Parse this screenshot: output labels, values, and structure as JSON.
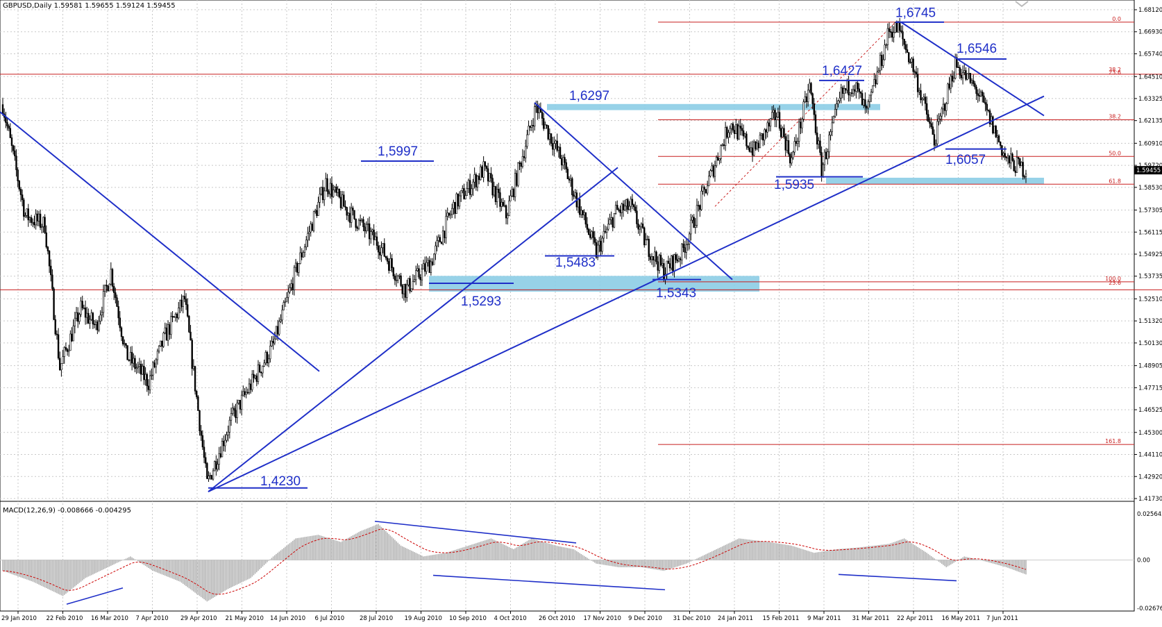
{
  "header": {
    "symbol_line": "GBPUSD,Daily  1.59581 1.59655 1.59124 1.59455",
    "macd_line": "MACD(12,26,9) -0.008666 -0.004295"
  },
  "colors": {
    "grid": "#c8c8c8",
    "candle": "#000000",
    "trend": "#1f2fc8",
    "fib": "#c81e1e",
    "zone": "#8ccde6",
    "hist": "#b4b4b4",
    "signal": "#cc0000"
  },
  "chart_data": {
    "type": "candlestick",
    "price_axis": {
      "ticks": [
        "1.68120",
        "1.66930",
        "1.65740",
        "1.64510",
        "1.63325",
        "1.62135",
        "1.60910",
        "1.59720",
        "1.58530",
        "1.57305",
        "1.56115",
        "1.54925",
        "1.53735",
        "1.52510",
        "1.51320",
        "1.50130",
        "1.48905",
        "1.47715",
        "1.46525",
        "1.45300",
        "1.44110",
        "1.42920",
        "1.41730"
      ],
      "current_price": "1.59455",
      "ylim": [
        1.4173,
        1.6812
      ]
    },
    "macd_axis": {
      "ticks": [
        "0.025642",
        "0.00",
        "-0.02676"
      ],
      "ylim": [
        -0.02676,
        0.025642
      ]
    },
    "x_labels": [
      "29 Jan 2010",
      "22 Feb 2010",
      "16 Mar 2010",
      "7 Apr 2010",
      "29 Apr 2010",
      "21 May 2010",
      "14 Jun 2010",
      "6 Jul 2010",
      "28 Jul 2010",
      "19 Aug 2010",
      "10 Sep 2010",
      "4 Oct 2010",
      "26 Oct 2010",
      "17 Nov 2010",
      "9 Dec 2010",
      "31 Dec 2010",
      "24 Jan 2011",
      "15 Feb 2011",
      "9 Mar 2011",
      "31 Mar 2011",
      "22 Apr 2011",
      "16 May 2011",
      "7 Jun 2011"
    ],
    "anchors": [
      [
        0,
        1.63
      ],
      [
        15,
        1.57
      ],
      [
        28,
        1.565
      ],
      [
        38,
        1.488
      ],
      [
        52,
        1.52
      ],
      [
        62,
        1.51
      ],
      [
        72,
        1.54
      ],
      [
        82,
        1.495
      ],
      [
        97,
        1.48
      ],
      [
        108,
        1.505
      ],
      [
        121,
        1.525
      ],
      [
        136,
        1.425
      ],
      [
        152,
        1.46
      ],
      [
        180,
        1.5
      ],
      [
        195,
        1.54
      ],
      [
        215,
        1.588
      ],
      [
        230,
        1.572
      ],
      [
        250,
        1.555
      ],
      [
        268,
        1.53
      ],
      [
        285,
        1.545
      ],
      [
        300,
        1.575
      ],
      [
        320,
        1.595
      ],
      [
        335,
        1.57
      ],
      [
        345,
        1.6
      ],
      [
        355,
        1.629
      ],
      [
        372,
        1.6
      ],
      [
        385,
        1.572
      ],
      [
        395,
        1.55
      ],
      [
        408,
        1.572
      ],
      [
        418,
        1.575
      ],
      [
        428,
        1.555
      ],
      [
        440,
        1.54
      ],
      [
        452,
        1.55
      ],
      [
        468,
        1.585
      ],
      [
        484,
        1.62
      ],
      [
        500,
        1.605
      ],
      [
        515,
        1.625
      ],
      [
        525,
        1.6
      ],
      [
        537,
        1.64
      ],
      [
        545,
        1.595
      ],
      [
        558,
        1.635
      ],
      [
        566,
        1.642
      ],
      [
        575,
        1.625
      ],
      [
        590,
        1.67
      ],
      [
        596,
        1.671
      ],
      [
        606,
        1.65
      ],
      [
        620,
        1.61
      ],
      [
        634,
        1.652
      ],
      [
        648,
        1.638
      ],
      [
        658,
        1.62
      ],
      [
        668,
        1.6
      ],
      [
        681,
        1.5945
      ]
    ],
    "macd_anchors": [
      [
        0,
        -0.006
      ],
      [
        20,
        -0.012
      ],
      [
        40,
        -0.02
      ],
      [
        55,
        -0.01
      ],
      [
        70,
        -0.004
      ],
      [
        85,
        0.002
      ],
      [
        100,
        -0.006
      ],
      [
        118,
        -0.012
      ],
      [
        136,
        -0.023
      ],
      [
        150,
        -0.016
      ],
      [
        165,
        -0.01
      ],
      [
        180,
        0.002
      ],
      [
        195,
        0.012
      ],
      [
        210,
        0.014
      ],
      [
        225,
        0.01
      ],
      [
        238,
        0.016
      ],
      [
        250,
        0.02
      ],
      [
        265,
        0.008
      ],
      [
        280,
        0.002
      ],
      [
        295,
        0.004
      ],
      [
        310,
        0.008
      ],
      [
        325,
        0.012
      ],
      [
        340,
        0.006
      ],
      [
        352,
        0.012
      ],
      [
        368,
        0.008
      ],
      [
        380,
        0.006
      ],
      [
        395,
        -0.002
      ],
      [
        410,
        -0.004
      ],
      [
        425,
        -0.004
      ],
      [
        440,
        -0.006
      ],
      [
        455,
        -0.002
      ],
      [
        470,
        0.004
      ],
      [
        490,
        0.012
      ],
      [
        510,
        0.01
      ],
      [
        525,
        0.008
      ],
      [
        540,
        0.004
      ],
      [
        555,
        0.006
      ],
      [
        570,
        0.007
      ],
      [
        590,
        0.009
      ],
      [
        600,
        0.012
      ],
      [
        615,
        0.004
      ],
      [
        628,
        -0.004
      ],
      [
        640,
        0.002
      ],
      [
        655,
        -0.001
      ],
      [
        668,
        -0.004
      ],
      [
        681,
        -0.008
      ]
    ],
    "key_levels": [
      "1,6745",
      "1,6546",
      "1,6427",
      "1,6297",
      "1,6057",
      "1,5997",
      "1,5935",
      "1,5483",
      "1,5343",
      "1,5293",
      "1,4230"
    ],
    "fib_labels": [
      "0.0",
      "38.2",
      "23.6",
      "38.2",
      "50.0",
      "61.8",
      "100.0",
      "23.6",
      "161.8"
    ]
  }
}
